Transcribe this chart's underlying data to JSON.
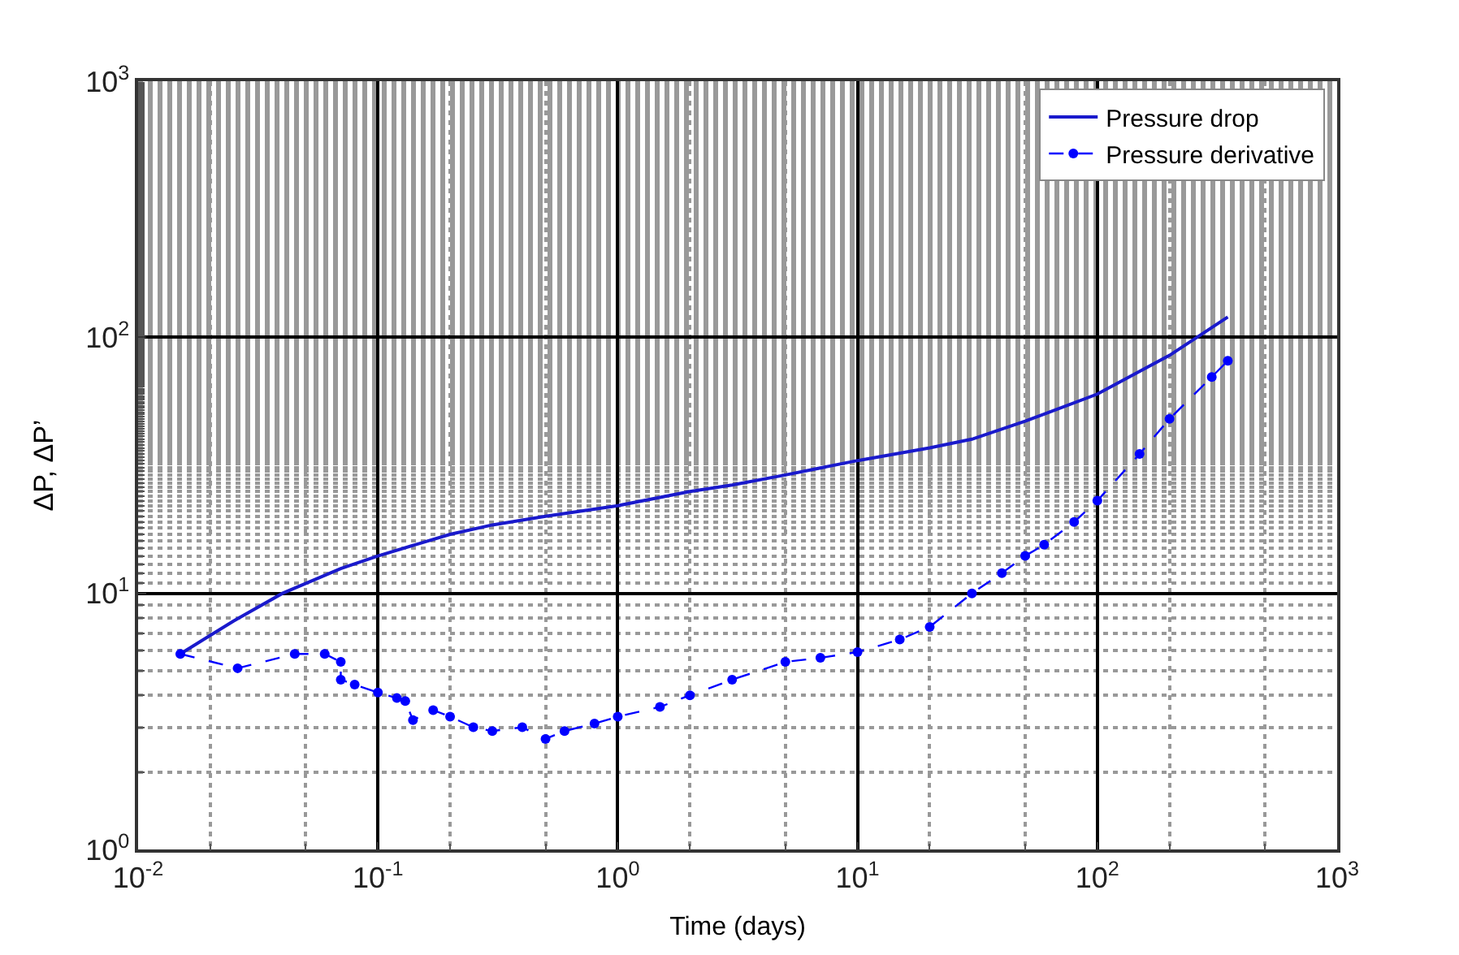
{
  "chart_data": {
    "type": "line",
    "xlabel": "Time (days)",
    "ylabel": "ΔP, ΔP’",
    "log": "xy",
    "xlim": [
      0.01,
      1000
    ],
    "ylim": [
      1,
      1000
    ],
    "xticks": [
      {
        "value": 0.01,
        "label": "10$^{-2}$"
      },
      {
        "value": 0.1,
        "label": "10$^{-1}$"
      },
      {
        "value": 1,
        "label": "10$^{0}$"
      },
      {
        "value": 10,
        "label": "10$^{1}$"
      },
      {
        "value": 100,
        "label": "10$^{2}$"
      },
      {
        "value": 1000,
        "label": "10$^{3}$"
      }
    ],
    "yticks": [
      {
        "value": 1,
        "label": "10$^{0}$"
      },
      {
        "value": 10,
        "label": "10$^{1}$"
      },
      {
        "value": 100,
        "label": "10$^{2}$"
      },
      {
        "value": 1000,
        "label": "10$^{3}$"
      }
    ],
    "grid": true,
    "legend": "top right",
    "series": [
      {
        "name": "Pressure drop",
        "color": "#1a1acc",
        "line_style": "solid",
        "marker": "none",
        "x": [
          0.015,
          0.025,
          0.04,
          0.07,
          0.1,
          0.2,
          0.3,
          0.5,
          1,
          2,
          3,
          5,
          10,
          20,
          30,
          50,
          100,
          200,
          350
        ],
        "values": [
          5.8,
          7.8,
          10,
          12.5,
          14,
          17,
          18.5,
          20,
          22,
          25,
          26.5,
          29,
          33,
          37,
          40,
          47,
          60,
          85,
          120
        ]
      },
      {
        "name": "Pressure derivative",
        "color": "#0000ff",
        "line_style": "dashed",
        "marker": "circle",
        "x": [
          0.015,
          0.026,
          0.045,
          0.06,
          0.07,
          0.07,
          0.08,
          0.1,
          0.12,
          0.13,
          0.14,
          0.17,
          0.2,
          0.25,
          0.3,
          0.4,
          0.5,
          0.6,
          0.8,
          1,
          1.5,
          2,
          3,
          5,
          7,
          10,
          15,
          20,
          30,
          40,
          50,
          60,
          80,
          100,
          150,
          200,
          300,
          350
        ],
        "values": [
          5.8,
          5.1,
          5.8,
          5.8,
          5.4,
          4.6,
          4.4,
          4.1,
          3.9,
          3.8,
          3.2,
          3.5,
          3.3,
          3.0,
          2.9,
          3.0,
          2.7,
          2.9,
          3.1,
          3.3,
          3.6,
          4.0,
          4.6,
          5.4,
          5.6,
          5.9,
          6.6,
          7.4,
          10,
          12,
          14,
          15.5,
          19,
          23,
          35,
          48,
          70,
          81
        ]
      }
    ]
  }
}
